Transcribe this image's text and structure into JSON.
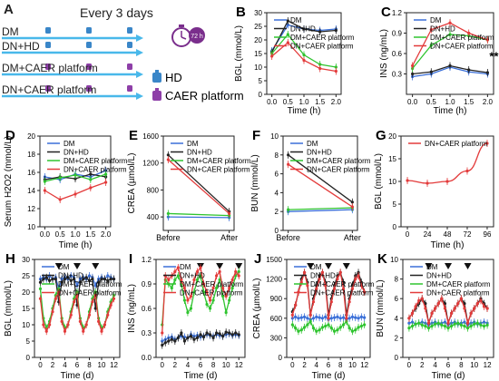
{
  "colors": {
    "DM": "#3a6fd8",
    "DN+HD": "#222222",
    "DM+CAER platform": "#2fc42f",
    "DN+CAER platform": "#e33b3b",
    "arrow": "#49b8ea",
    "hd": "#3a86c8",
    "caer": "#8e3fa8",
    "clock": "#7a2e8c"
  },
  "schematic": {
    "panel": "A",
    "title": "Every 3 days",
    "clock_text": "72 h",
    "rows": [
      "DM",
      "DN+HD",
      "DM+CAER platform",
      "DN+CAER platform"
    ],
    "legend": [
      {
        "label": "HD",
        "icon": "hd-bag-icon"
      },
      {
        "label": "CAER platform",
        "icon": "caer-bag-icon"
      }
    ]
  },
  "chart_data": [
    {
      "panel": "B",
      "type": "line",
      "ylabel": "BGL (mmol/L)",
      "xlabel": "Time (h)",
      "x": [
        0.0,
        0.5,
        1.0,
        1.5,
        2.0
      ],
      "xticks": [
        "0.0",
        "0.5",
        "1.0",
        "1.5",
        "2.0"
      ],
      "ylim": [
        0,
        30
      ],
      "yticks": [
        "0",
        "5",
        "10",
        "15",
        "20",
        "25",
        "30"
      ],
      "legend": [
        "DM",
        "DN+HD",
        "DM+CAER platform",
        "DN+CAER platform"
      ],
      "series": [
        {
          "name": "DM",
          "values": [
            16,
            25.5,
            24,
            23.5,
            24
          ]
        },
        {
          "name": "DN+HD",
          "values": [
            15.5,
            27,
            24,
            23,
            23.5
          ]
        },
        {
          "name": "DM+CAER platform",
          "values": [
            15,
            22,
            14.5,
            11,
            10
          ]
        },
        {
          "name": "DN+CAER platform",
          "values": [
            14,
            19,
            12.5,
            9.5,
            8.5
          ]
        }
      ]
    },
    {
      "panel": "C",
      "type": "line",
      "ylabel": "INS (ng/mL)",
      "xlabel": "Time (h)",
      "x": [
        0.0,
        0.5,
        1.0,
        1.5,
        2.0
      ],
      "xticks": [
        "0.0",
        "0.5",
        "1.0",
        "1.5",
        "2.0"
      ],
      "ylim": [
        0,
        1.2
      ],
      "yticks": [
        "0.3",
        "0.6",
        "0.9",
        "1.2"
      ],
      "legend": [
        "DM",
        "DN+HD",
        "DM+CAER platform",
        "DN+CAER platform"
      ],
      "annotation": "**",
      "series": [
        {
          "name": "DM",
          "values": [
            0.26,
            0.3,
            0.4,
            0.33,
            0.3
          ]
        },
        {
          "name": "DN+HD",
          "values": [
            0.3,
            0.33,
            0.42,
            0.36,
            0.32
          ]
        },
        {
          "name": "DM+CAER platform",
          "values": [
            0.38,
            0.72,
            0.88,
            0.86,
            0.8
          ]
        },
        {
          "name": "DN+CAER platform",
          "values": [
            0.42,
            0.95,
            1.05,
            0.9,
            0.8
          ]
        }
      ]
    },
    {
      "panel": "D",
      "type": "line",
      "ylabel": "Serum H2O2 (mmol/L)",
      "xlabel": "Time (h)",
      "x": [
        0.0,
        0.5,
        1.0,
        1.5,
        2.0
      ],
      "xticks": [
        "0.0",
        "0.5",
        "1.0",
        "1.5",
        "2.0"
      ],
      "ylim": [
        10,
        20
      ],
      "yticks": [
        "10",
        "12",
        "14",
        "16",
        "18",
        "20"
      ],
      "legend": [
        "DM",
        "DN+HD",
        "DM+CAER platform",
        "DN+CAER platform"
      ],
      "series": [
        {
          "name": "DM",
          "values": [
            15.5,
            15.2,
            15.8,
            15.5,
            16.2
          ]
        },
        {
          "name": "DN+HD",
          "values": [
            15.2,
            15.5,
            15.3,
            15.8,
            15.5
          ]
        },
        {
          "name": "DM+CAER platform",
          "values": [
            15.0,
            15.4,
            15.7,
            15.2,
            15.8
          ]
        },
        {
          "name": "DN+CAER platform",
          "values": [
            14.0,
            13.0,
            13.6,
            14.3,
            14.9
          ]
        }
      ]
    },
    {
      "panel": "E",
      "type": "line",
      "ylabel": "CREA (µmol/L)",
      "xlabel": "",
      "x": [
        0,
        1
      ],
      "xticks": [
        "Before",
        "After"
      ],
      "ylim": [
        200,
        1600
      ],
      "yticks": [
        "400",
        "800",
        "1200",
        "1600"
      ],
      "legend": [
        "DM",
        "DN+HD",
        "DM+CAER platform",
        "DN+CAER platform"
      ],
      "series": [
        {
          "name": "DM",
          "values": [
            400,
            390
          ]
        },
        {
          "name": "DN+HD",
          "values": [
            1320,
            480
          ]
        },
        {
          "name": "DM+CAER platform",
          "values": [
            450,
            420
          ]
        },
        {
          "name": "DN+CAER platform",
          "values": [
            1250,
            450
          ]
        }
      ]
    },
    {
      "panel": "F",
      "type": "line",
      "ylabel": "BUN (mmol/L)",
      "xlabel": "",
      "x": [
        0,
        1
      ],
      "xticks": [
        "Before",
        "After"
      ],
      "ylim": [
        0,
        10
      ],
      "yticks": [
        "0",
        "2",
        "4",
        "6",
        "8",
        "10"
      ],
      "legend": [
        "DM",
        "DN+HD",
        "DM+CAER platform",
        "DN+CAER platform"
      ],
      "series": [
        {
          "name": "DM",
          "values": [
            2.0,
            2.2
          ]
        },
        {
          "name": "DN+HD",
          "values": [
            8.0,
            3.0
          ]
        },
        {
          "name": "DM+CAER platform",
          "values": [
            2.2,
            2.4
          ]
        },
        {
          "name": "DN+CAER platform",
          "values": [
            7.0,
            2.5
          ]
        }
      ]
    },
    {
      "panel": "G",
      "type": "line",
      "ylabel": "BGL (mmol/L)",
      "xlabel": "Time (h)",
      "x": [
        0,
        24,
        48,
        72,
        96
      ],
      "xticks": [
        "0",
        "24",
        "48",
        "72",
        "96"
      ],
      "ylim": [
        0,
        20
      ],
      "yticks": [
        "0",
        "5",
        "10",
        "15",
        "20"
      ],
      "legend": [
        "DN+CAER platform"
      ],
      "series": [
        {
          "name": "DN+CAER platform",
          "values": [
            10.2,
            9.6,
            10.0,
            12.3,
            18.4
          ]
        }
      ]
    },
    {
      "panel": "H",
      "type": "line",
      "ylabel": "BGL (mmol/L)",
      "xlabel": "Time (d)",
      "x": [
        0,
        0.5,
        1,
        1.5,
        2,
        2.5,
        3,
        3.5,
        4,
        4.5,
        5,
        5.5,
        6,
        6.5,
        7,
        7.5,
        8,
        8.5,
        9,
        9.5,
        10,
        10.5,
        11,
        11.5,
        12
      ],
      "xticks": [
        "0",
        "2",
        "4",
        "6",
        "8",
        "10",
        "12"
      ],
      "ylim": [
        0,
        30
      ],
      "yticks": [
        "0",
        "5",
        "10",
        "15",
        "20",
        "25",
        "30"
      ],
      "triangles": [
        3,
        6,
        9
      ],
      "legend": [
        "DM",
        "DN+HD",
        "DM+CAER platform",
        "DN+CAER platform"
      ],
      "series": [
        {
          "name": "DM",
          "values": [
            24,
            24.5,
            24,
            25,
            24,
            24.5,
            21,
            24,
            24.5,
            24,
            25,
            24.5,
            22,
            24,
            24.5,
            24,
            25,
            24.5,
            22,
            24,
            24.5,
            24,
            25,
            24.5,
            24
          ]
        },
        {
          "name": "DN+HD",
          "values": [
            23,
            24,
            24.5,
            23.5,
            24,
            24,
            17,
            23,
            24,
            24.5,
            23.5,
            24,
            16,
            23,
            24,
            24.5,
            23.5,
            24,
            15,
            23,
            24,
            24,
            23.5,
            24,
            24
          ]
        },
        {
          "name": "DM+CAER platform",
          "values": [
            21,
            12,
            9,
            11,
            15,
            19,
            21,
            12,
            9,
            10,
            14,
            18,
            20,
            12,
            9,
            10,
            14,
            18,
            20,
            12,
            9,
            10,
            14,
            17,
            19
          ]
        },
        {
          "name": "DN+CAER platform",
          "values": [
            18,
            10,
            8,
            10,
            14,
            18,
            20,
            11,
            8,
            10,
            13,
            17,
            19,
            11,
            8,
            10,
            13,
            17,
            19,
            11,
            8,
            10,
            13,
            16,
            18
          ]
        }
      ]
    },
    {
      "panel": "I",
      "type": "line",
      "ylabel": "INS (ng/mL)",
      "xlabel": "Time (d)",
      "x": [
        0,
        0.5,
        1,
        1.5,
        2,
        2.5,
        3,
        3.5,
        4,
        4.5,
        5,
        5.5,
        6,
        6.5,
        7,
        7.5,
        8,
        8.5,
        9,
        9.5,
        10,
        10.5,
        11,
        11.5,
        12
      ],
      "xticks": [
        "0",
        "2",
        "4",
        "6",
        "8",
        "10",
        "12"
      ],
      "ylim": [
        0,
        1.2
      ],
      "yticks": [
        "0.0",
        "0.3",
        "0.6",
        "0.9",
        "1.2"
      ],
      "triangles": [
        6,
        9,
        12
      ],
      "legend": [
        "DM",
        "DN+HD",
        "DM+CAER platform",
        "DN+CAER platform"
      ],
      "series": [
        {
          "name": "DM",
          "values": [
            0.2,
            0.22,
            0.24,
            0.25,
            0.22,
            0.24,
            0.26,
            0.25,
            0.24,
            0.28,
            0.26,
            0.27,
            0.25,
            0.26,
            0.28,
            0.27,
            0.26,
            0.28,
            0.27,
            0.26,
            0.28,
            0.29,
            0.27,
            0.28,
            0.27
          ]
        },
        {
          "name": "DN+HD",
          "values": [
            0.15,
            0.18,
            0.2,
            0.22,
            0.2,
            0.24,
            0.3,
            0.2,
            0.24,
            0.26,
            0.22,
            0.24,
            0.28,
            0.25,
            0.3,
            0.28,
            0.24,
            0.3,
            0.29,
            0.26,
            0.31,
            0.3,
            0.28,
            0.3,
            0.28
          ]
        },
        {
          "name": "DM+CAER platform",
          "values": [
            0.4,
            0.95,
            0.9,
            0.85,
            0.95,
            1.0,
            0.9,
            0.7,
            0.55,
            0.6,
            0.8,
            0.95,
            1.0,
            0.8,
            0.65,
            0.6,
            0.7,
            0.85,
            0.95,
            0.75,
            0.55,
            0.7,
            0.85,
            1.0,
            1.05
          ]
        },
        {
          "name": "DN+CAER platform",
          "values": [
            0.3,
            1.0,
            0.95,
            1.0,
            1.05,
            1.1,
            0.95,
            0.85,
            0.7,
            0.75,
            0.95,
            1.05,
            1.1,
            0.9,
            0.8,
            0.7,
            0.85,
            1.0,
            1.05,
            0.85,
            0.75,
            0.85,
            0.95,
            1.05,
            1.0
          ]
        }
      ]
    },
    {
      "panel": "J",
      "type": "line",
      "ylabel": "CREA (µmol/L)",
      "xlabel": "Time (d)",
      "x": [
        0,
        0.5,
        1,
        1.5,
        2,
        2.5,
        3,
        3.5,
        4,
        4.5,
        5,
        5.5,
        6,
        6.5,
        7,
        7.5,
        8,
        8.5,
        9,
        9.5,
        10,
        10.5,
        11,
        11.5,
        12
      ],
      "xticks": [
        "0",
        "2",
        "4",
        "6",
        "8",
        "10",
        "12"
      ],
      "ylim": [
        0,
        1500
      ],
      "yticks": [
        "0",
        "300",
        "600",
        "900",
        "1200",
        "1500"
      ],
      "triangles": [
        3,
        6,
        9
      ],
      "legend": [
        "DM",
        "DN+HD",
        "DM+CAER platform",
        "DN+CAER platform"
      ],
      "series": [
        {
          "name": "DM",
          "values": [
            600,
            620,
            600,
            610,
            620,
            600,
            580,
            600,
            620,
            610,
            600,
            620,
            580,
            600,
            610,
            620,
            600,
            610,
            580,
            600,
            620,
            610,
            600,
            620,
            610
          ]
        },
        {
          "name": "DN+HD",
          "values": [
            700,
            800,
            1000,
            1200,
            1300,
            1150,
            650,
            900,
            1100,
            1250,
            1300,
            1150,
            650,
            900,
            1100,
            1250,
            1300,
            1150,
            650,
            900,
            1100,
            1250,
            1300,
            1150,
            1000
          ]
        },
        {
          "name": "DM+CAER platform",
          "values": [
            500,
            450,
            400,
            420,
            460,
            500,
            550,
            450,
            400,
            420,
            460,
            480,
            500,
            450,
            400,
            420,
            460,
            500,
            550,
            450,
            400,
            420,
            460,
            480,
            500
          ]
        },
        {
          "name": "DN+CAER platform",
          "values": [
            650,
            800,
            1000,
            1150,
            1300,
            1100,
            650,
            850,
            1050,
            1200,
            1300,
            1100,
            600,
            850,
            1050,
            1200,
            1300,
            1050,
            600,
            850,
            1050,
            1200,
            1250,
            1100,
            1000
          ]
        }
      ]
    },
    {
      "panel": "K",
      "type": "line",
      "ylabel": "BUN (mmol/L)",
      "xlabel": "Time (d)",
      "x": [
        0,
        0.5,
        1,
        1.5,
        2,
        2.5,
        3,
        3.5,
        4,
        4.5,
        5,
        5.5,
        6,
        6.5,
        7,
        7.5,
        8,
        8.5,
        9,
        9.5,
        10,
        10.5,
        11,
        11.5,
        12
      ],
      "xticks": [
        "0",
        "2",
        "4",
        "6",
        "8",
        "10",
        "12"
      ],
      "ylim": [
        0,
        10
      ],
      "yticks": [
        "0",
        "2",
        "4",
        "6",
        "8",
        "10"
      ],
      "triangles": [
        3,
        6,
        9
      ],
      "legend": [
        "DM",
        "DN+HD",
        "DM+CAER platform",
        "DN+CAER platform"
      ],
      "series": [
        {
          "name": "DM",
          "values": [
            3.5,
            3.6,
            3.4,
            3.5,
            3.6,
            3.5,
            3.3,
            3.5,
            3.6,
            3.4,
            3.5,
            3.6,
            3.3,
            3.5,
            3.6,
            3.4,
            3.5,
            3.6,
            3.3,
            3.5,
            3.6,
            3.4,
            3.5,
            3.6,
            3.5
          ]
        },
        {
          "name": "DN+HD",
          "values": [
            4,
            4.5,
            5,
            5.5,
            6,
            5.5,
            3.5,
            4.5,
            5,
            5.5,
            6,
            5.5,
            3.5,
            4.5,
            5,
            5.5,
            6,
            5.5,
            3.5,
            4.5,
            5,
            5.5,
            6,
            5.5,
            5
          ]
        },
        {
          "name": "DM+CAER platform",
          "values": [
            3,
            3.2,
            3.4,
            3.5,
            3.3,
            3.2,
            3,
            3.2,
            3.4,
            3.5,
            3.3,
            3.2,
            3,
            3.2,
            3.4,
            3.5,
            3.3,
            3.2,
            3,
            3.2,
            3.4,
            3.5,
            3.3,
            3.2,
            3.3
          ]
        },
        {
          "name": "DN+CAER platform",
          "values": [
            4,
            4.5,
            5.2,
            5.8,
            6,
            5,
            3.5,
            4.5,
            5,
            5.5,
            6,
            5,
            3.5,
            4.5,
            5,
            5.5,
            6,
            5,
            3.5,
            4.5,
            5,
            5.5,
            5.8,
            5.2,
            5
          ]
        }
      ]
    }
  ]
}
